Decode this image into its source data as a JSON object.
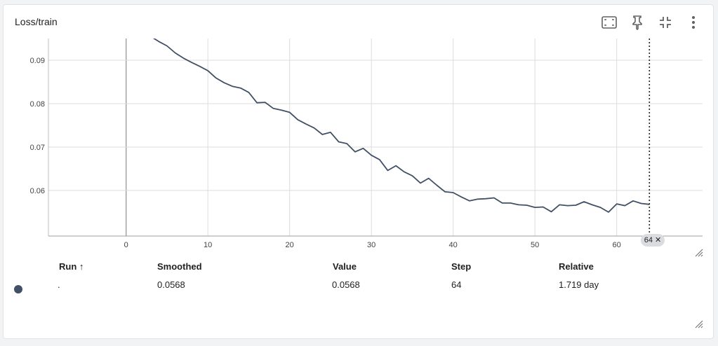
{
  "card": {
    "title": "Loss/train"
  },
  "toolbar": {
    "icons": [
      "fit-domain-icon",
      "pin-icon",
      "collapse-icon",
      "more-vert-icon"
    ]
  },
  "chart_data": {
    "type": "line",
    "title": "Loss/train",
    "xlabel": "",
    "ylabel": "",
    "xlim": [
      -9.5,
      70.5
    ],
    "ylim": [
      0.0495,
      0.095
    ],
    "x_ticks": [
      0,
      10,
      20,
      30,
      40,
      50,
      60
    ],
    "y_ticks": [
      0.06,
      0.07,
      0.08,
      0.09
    ],
    "y_tick_labels": [
      "0.06",
      "0.07",
      "0.08",
      "0.09"
    ],
    "grid": true,
    "hover_step": 64,
    "hover_step_label": "64",
    "line_color": "#425066",
    "series": [
      {
        "x": [
          3,
          4,
          5,
          6,
          7,
          8,
          9,
          10,
          11,
          12,
          13,
          14,
          15,
          16,
          17,
          18,
          19,
          20,
          21,
          22,
          23,
          24,
          25,
          26,
          27,
          28,
          29,
          30,
          31,
          32,
          33,
          34,
          35,
          36,
          37,
          38,
          39,
          40,
          41,
          42,
          43,
          44,
          45,
          46,
          47,
          48,
          49,
          50,
          51,
          52,
          53,
          54,
          55,
          56,
          57,
          58,
          59,
          60,
          61,
          62,
          63,
          64
        ],
        "values": [
          0.0955,
          0.0943,
          0.0933,
          0.0917,
          0.0905,
          0.0895,
          0.0886,
          0.0876,
          0.0859,
          0.0848,
          0.084,
          0.0836,
          0.0826,
          0.0802,
          0.0803,
          0.0789,
          0.0785,
          0.078,
          0.0763,
          0.0753,
          0.0744,
          0.0729,
          0.0734,
          0.0712,
          0.0708,
          0.0689,
          0.0697,
          0.0681,
          0.0671,
          0.0646,
          0.0657,
          0.0643,
          0.0634,
          0.0617,
          0.0628,
          0.0612,
          0.0597,
          0.0595,
          0.0585,
          0.0576,
          0.058,
          0.0581,
          0.0583,
          0.0571,
          0.0571,
          0.0567,
          0.0566,
          0.0561,
          0.0562,
          0.0551,
          0.0567,
          0.0565,
          0.0566,
          0.0574,
          0.0567,
          0.0561,
          0.055,
          0.0569,
          0.0565,
          0.0576,
          0.057,
          0.0568
        ]
      }
    ]
  },
  "table": {
    "headers": {
      "run": "Run ↑",
      "smoothed": "Smoothed",
      "value": "Value",
      "step": "Step",
      "relative": "Relative"
    },
    "row": {
      "run": ".",
      "smoothed": "0.0568",
      "value": "0.0568",
      "step": "64",
      "relative": "1.719 day",
      "color": "#425066"
    }
  }
}
